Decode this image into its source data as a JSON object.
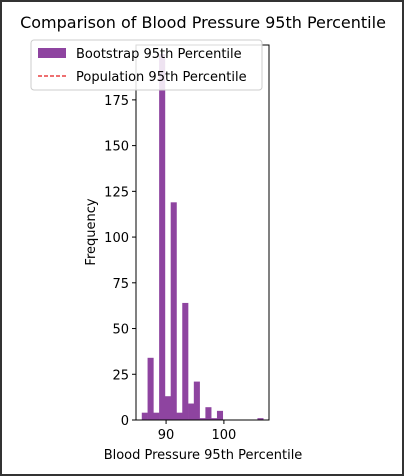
{
  "chart_data": {
    "type": "bar",
    "title": "Comparison of Blood Pressure 95th Percentile",
    "xlabel": "Blood Pressure 95th Percentile",
    "ylabel": "Frequency",
    "xlim": [
      84.8,
      107.8
    ],
    "ylim": [
      0,
      205
    ],
    "xticks": [
      90,
      100
    ],
    "yticks": [
      0,
      25,
      50,
      75,
      100,
      125,
      150,
      175
    ],
    "grid": false,
    "legend_position": "upper-left",
    "bin_width": 1.05,
    "bins": [
      {
        "x": 85.8,
        "count": 4
      },
      {
        "x": 86.8,
        "count": 34
      },
      {
        "x": 87.8,
        "count": 4
      },
      {
        "x": 88.8,
        "count": 200
      },
      {
        "x": 89.8,
        "count": 13
      },
      {
        "x": 90.8,
        "count": 119
      },
      {
        "x": 91.8,
        "count": 4
      },
      {
        "x": 92.8,
        "count": 64
      },
      {
        "x": 93.8,
        "count": 9
      },
      {
        "x": 94.8,
        "count": 21
      },
      {
        "x": 95.8,
        "count": 1
      },
      {
        "x": 96.8,
        "count": 7
      },
      {
        "x": 97.8,
        "count": 1
      },
      {
        "x": 98.8,
        "count": 5
      },
      {
        "x": 105.8,
        "count": 1
      }
    ],
    "series": [
      {
        "name": "Bootstrap 95th Percentile",
        "type": "histogram",
        "color": "#8e44a0"
      },
      {
        "name": "Population 95th Percentile",
        "type": "vline",
        "color": "#e41a1c",
        "linestyle": "dashed"
      }
    ]
  }
}
